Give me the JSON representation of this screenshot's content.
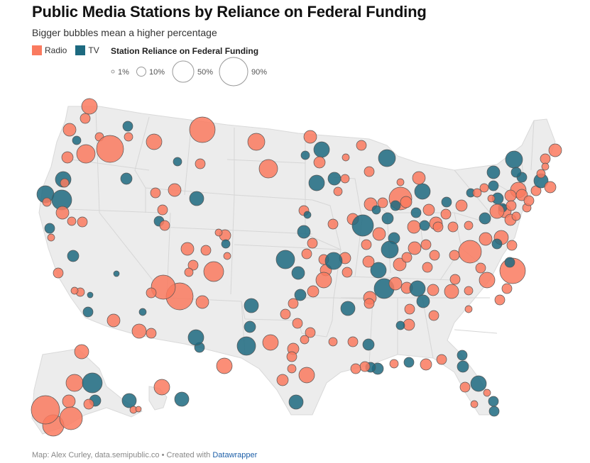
{
  "title": "Public Media Stations by Reliance on Federal Funding",
  "subtitle": "Bigger bubbles mean a higher percentage",
  "legend": {
    "types": [
      {
        "label": "Radio",
        "color": "#fa7a5f"
      },
      {
        "label": "TV",
        "color": "#1d6a80"
      }
    ],
    "size_title": "Station Reliance on Federal Funding",
    "sizes": [
      {
        "label": "1%",
        "pct": 1
      },
      {
        "label": "10%",
        "pct": 10
      },
      {
        "label": "50%",
        "pct": 50
      },
      {
        "label": "90%",
        "pct": 90
      }
    ]
  },
  "footer": {
    "credit": "Map: Alex Curley, data.semipublic.co • Created with ",
    "tool": "Datawrapper"
  }
}
